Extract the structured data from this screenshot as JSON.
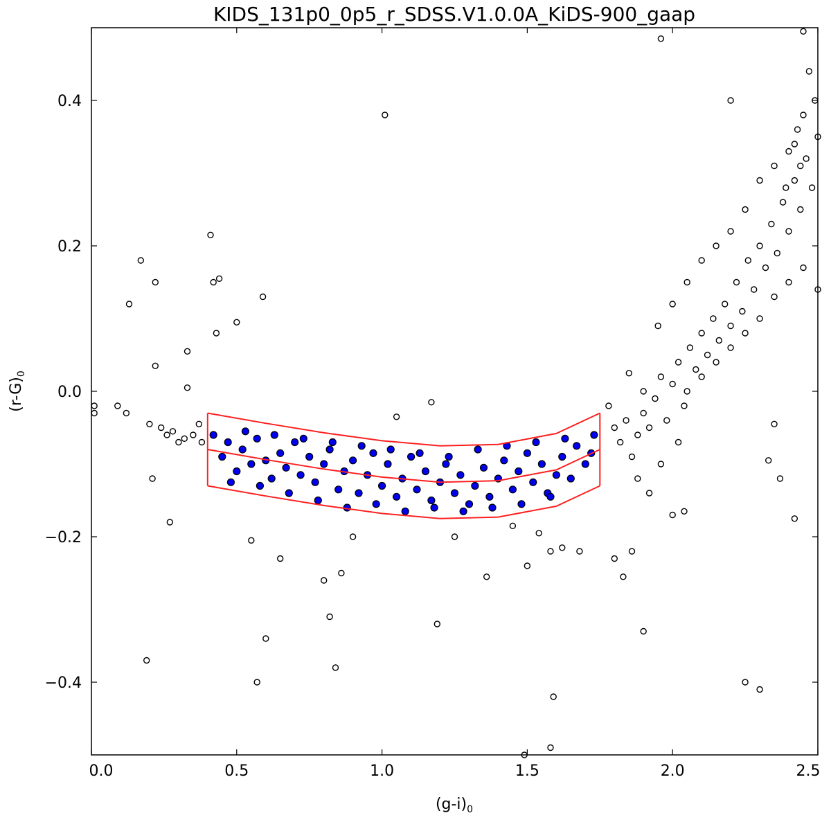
{
  "chart_data": {
    "type": "scatter",
    "title": "KIDS_131p0_0p5_r_SDSS.V1.0.0A_KiDS-900_gaap",
    "xlabel": "(g-i)",
    "xlabel_sub": "0",
    "ylabel": "(r-G)",
    "ylabel_sub": "0",
    "xlim": [
      0.0,
      2.5
    ],
    "ylim": [
      -0.5,
      0.5
    ],
    "xticks": [
      0.0,
      0.5,
      1.0,
      1.5,
      2.0,
      2.5
    ],
    "xtick_labels": [
      "0.0",
      "0.5",
      "1.0",
      "1.5",
      "2.0",
      "2.5"
    ],
    "yticks": [
      -0.4,
      -0.2,
      0.0,
      0.2,
      0.4
    ],
    "ytick_labels": [
      "−0.4",
      "−0.2",
      "0.0",
      "0.2",
      "0.4"
    ],
    "grid": false,
    "colors": {
      "selected_fill": "#0000ee",
      "outlier_fill": "#ffffff",
      "marker_edge": "#000000",
      "selection_line": "#ff2020"
    },
    "selection_box": {
      "x_min": 0.4,
      "x_max": 1.75,
      "center_curve": [
        [
          0.4,
          -0.08
        ],
        [
          0.6,
          -0.094
        ],
        [
          0.8,
          -0.107
        ],
        [
          1.0,
          -0.118
        ],
        [
          1.2,
          -0.125
        ],
        [
          1.4,
          -0.123
        ],
        [
          1.6,
          -0.108
        ],
        [
          1.75,
          -0.08
        ]
      ],
      "half_width": 0.05
    },
    "series": [
      {
        "role": "selected",
        "points": [
          [
            0.42,
            -0.06
          ],
          [
            0.45,
            -0.09
          ],
          [
            0.47,
            -0.07
          ],
          [
            0.5,
            -0.11
          ],
          [
            0.52,
            -0.08
          ],
          [
            0.55,
            -0.1
          ],
          [
            0.57,
            -0.065
          ],
          [
            0.6,
            -0.095
          ],
          [
            0.62,
            -0.12
          ],
          [
            0.65,
            -0.085
          ],
          [
            0.67,
            -0.105
          ],
          [
            0.7,
            -0.07
          ],
          [
            0.72,
            -0.115
          ],
          [
            0.75,
            -0.09
          ],
          [
            0.77,
            -0.125
          ],
          [
            0.8,
            -0.1
          ],
          [
            0.82,
            -0.08
          ],
          [
            0.85,
            -0.135
          ],
          [
            0.87,
            -0.11
          ],
          [
            0.9,
            -0.095
          ],
          [
            0.92,
            -0.14
          ],
          [
            0.95,
            -0.115
          ],
          [
            0.97,
            -0.085
          ],
          [
            1.0,
            -0.13
          ],
          [
            1.02,
            -0.1
          ],
          [
            1.05,
            -0.145
          ],
          [
            1.07,
            -0.12
          ],
          [
            1.1,
            -0.09
          ],
          [
            1.12,
            -0.135
          ],
          [
            1.15,
            -0.11
          ],
          [
            1.17,
            -0.15
          ],
          [
            1.2,
            -0.125
          ],
          [
            1.22,
            -0.1
          ],
          [
            1.25,
            -0.14
          ],
          [
            1.27,
            -0.115
          ],
          [
            1.3,
            -0.155
          ],
          [
            1.32,
            -0.13
          ],
          [
            1.35,
            -0.105
          ],
          [
            1.37,
            -0.145
          ],
          [
            1.4,
            -0.12
          ],
          [
            1.42,
            -0.095
          ],
          [
            1.45,
            -0.135
          ],
          [
            1.47,
            -0.11
          ],
          [
            1.5,
            -0.085
          ],
          [
            1.52,
            -0.125
          ],
          [
            1.55,
            -0.1
          ],
          [
            1.57,
            -0.14
          ],
          [
            1.6,
            -0.115
          ],
          [
            1.62,
            -0.09
          ],
          [
            1.65,
            -0.12
          ],
          [
            1.67,
            -0.075
          ],
          [
            1.7,
            -0.1
          ],
          [
            1.72,
            -0.085
          ],
          [
            0.48,
            -0.125
          ],
          [
            0.58,
            -0.13
          ],
          [
            0.68,
            -0.14
          ],
          [
            0.78,
            -0.15
          ],
          [
            0.88,
            -0.16
          ],
          [
            0.98,
            -0.155
          ],
          [
            1.08,
            -0.165
          ],
          [
            1.18,
            -0.16
          ],
          [
            1.28,
            -0.165
          ],
          [
            1.38,
            -0.16
          ],
          [
            1.48,
            -0.155
          ],
          [
            1.58,
            -0.145
          ],
          [
            0.53,
            -0.055
          ],
          [
            0.63,
            -0.06
          ],
          [
            0.73,
            -0.065
          ],
          [
            0.83,
            -0.07
          ],
          [
            0.93,
            -0.075
          ],
          [
            1.03,
            -0.08
          ],
          [
            1.13,
            -0.085
          ],
          [
            1.23,
            -0.09
          ],
          [
            1.33,
            -0.08
          ],
          [
            1.43,
            -0.075
          ],
          [
            1.53,
            -0.07
          ],
          [
            1.63,
            -0.065
          ],
          [
            1.73,
            -0.06
          ]
        ]
      },
      {
        "role": "outliers",
        "points": [
          [
            0.01,
            -0.02
          ],
          [
            0.01,
            -0.03
          ],
          [
            0.09,
            -0.02
          ],
          [
            0.12,
            -0.03
          ],
          [
            0.13,
            0.12
          ],
          [
            0.17,
            0.18
          ],
          [
            0.22,
            0.15
          ],
          [
            0.22,
            0.035
          ],
          [
            0.19,
            -0.37
          ],
          [
            0.2,
            -0.045
          ],
          [
            0.24,
            -0.05
          ],
          [
            0.26,
            -0.06
          ],
          [
            0.28,
            -0.055
          ],
          [
            0.3,
            -0.07
          ],
          [
            0.32,
            -0.065
          ],
          [
            0.33,
            0.055
          ],
          [
            0.33,
            0.005
          ],
          [
            0.35,
            -0.06
          ],
          [
            0.37,
            -0.045
          ],
          [
            0.38,
            -0.07
          ],
          [
            0.41,
            0.215
          ],
          [
            0.42,
            0.15
          ],
          [
            0.44,
            0.155
          ],
          [
            0.43,
            0.08
          ],
          [
            0.5,
            0.095
          ],
          [
            0.59,
            0.13
          ],
          [
            0.27,
            -0.18
          ],
          [
            0.21,
            -0.12
          ],
          [
            0.55,
            -0.205
          ],
          [
            0.57,
            -0.4
          ],
          [
            0.6,
            -0.34
          ],
          [
            0.65,
            -0.23
          ],
          [
            0.8,
            -0.26
          ],
          [
            0.82,
            -0.31
          ],
          [
            0.84,
            -0.38
          ],
          [
            0.86,
            -0.25
          ],
          [
            0.9,
            -0.2
          ],
          [
            1.01,
            0.38
          ],
          [
            1.05,
            -0.035
          ],
          [
            1.19,
            -0.32
          ],
          [
            1.17,
            -0.015
          ],
          [
            1.25,
            -0.2
          ],
          [
            1.36,
            -0.255
          ],
          [
            1.45,
            -0.185
          ],
          [
            1.5,
            -0.24
          ],
          [
            1.54,
            -0.195
          ],
          [
            1.58,
            -0.22
          ],
          [
            1.59,
            -0.42
          ],
          [
            1.62,
            -0.215
          ],
          [
            1.68,
            -0.22
          ],
          [
            1.49,
            -0.5
          ],
          [
            1.58,
            -0.49
          ],
          [
            1.8,
            -0.23
          ],
          [
            1.83,
            -0.255
          ],
          [
            1.86,
            -0.22
          ],
          [
            1.9,
            -0.33
          ],
          [
            1.96,
            0.485
          ],
          [
            2.0,
            -0.17
          ],
          [
            2.04,
            -0.165
          ],
          [
            2.25,
            -0.4
          ],
          [
            2.3,
            -0.41
          ],
          [
            2.33,
            -0.095
          ],
          [
            2.37,
            -0.12
          ],
          [
            2.42,
            -0.175
          ],
          [
            2.45,
            0.495
          ],
          [
            2.2,
            0.4
          ],
          [
            1.78,
            -0.02
          ],
          [
            1.8,
            -0.05
          ],
          [
            1.82,
            -0.07
          ],
          [
            1.84,
            -0.04
          ],
          [
            1.86,
            -0.09
          ],
          [
            1.88,
            -0.06
          ],
          [
            1.9,
            -0.03
          ],
          [
            1.92,
            -0.05
          ],
          [
            1.94,
            -0.01
          ],
          [
            1.96,
            0.02
          ],
          [
            1.98,
            -0.04
          ],
          [
            2.0,
            0.01
          ],
          [
            2.02,
            0.04
          ],
          [
            2.04,
            -0.02
          ],
          [
            2.06,
            0.06
          ],
          [
            2.08,
            0.03
          ],
          [
            2.1,
            0.08
          ],
          [
            2.12,
            0.05
          ],
          [
            2.14,
            0.1
          ],
          [
            2.16,
            0.07
          ],
          [
            2.18,
            0.12
          ],
          [
            2.2,
            0.09
          ],
          [
            2.22,
            0.15
          ],
          [
            2.24,
            0.11
          ],
          [
            2.26,
            0.18
          ],
          [
            2.28,
            0.14
          ],
          [
            2.3,
            0.2
          ],
          [
            2.32,
            0.17
          ],
          [
            2.34,
            0.23
          ],
          [
            2.36,
            0.19
          ],
          [
            2.38,
            0.26
          ],
          [
            2.4,
            0.22
          ],
          [
            2.42,
            0.29
          ],
          [
            2.44,
            0.25
          ],
          [
            2.46,
            0.32
          ],
          [
            2.48,
            0.28
          ],
          [
            2.5,
            0.35
          ],
          [
            2.49,
            0.4
          ],
          [
            2.47,
            0.44
          ],
          [
            2.45,
            0.38
          ],
          [
            1.95,
            0.09
          ],
          [
            2.0,
            0.12
          ],
          [
            2.05,
            0.15
          ],
          [
            2.1,
            0.18
          ],
          [
            2.15,
            0.2
          ],
          [
            2.2,
            0.22
          ],
          [
            2.25,
            0.25
          ],
          [
            2.3,
            0.29
          ],
          [
            2.35,
            0.31
          ],
          [
            2.4,
            0.33
          ],
          [
            2.43,
            0.36
          ],
          [
            2.05,
            0.0
          ],
          [
            2.1,
            0.02
          ],
          [
            2.15,
            0.04
          ],
          [
            2.2,
            0.06
          ],
          [
            2.25,
            0.08
          ],
          [
            2.3,
            0.1
          ],
          [
            2.35,
            0.13
          ],
          [
            2.4,
            0.15
          ],
          [
            2.45,
            0.17
          ],
          [
            2.5,
            0.14
          ],
          [
            1.85,
            0.025
          ],
          [
            1.9,
            0.0
          ],
          [
            2.35,
            -0.045
          ],
          [
            2.42,
            0.34
          ],
          [
            2.39,
            0.28
          ],
          [
            2.44,
            0.31
          ],
          [
            1.88,
            -0.12
          ],
          [
            1.92,
            -0.14
          ],
          [
            1.96,
            -0.1
          ],
          [
            2.02,
            -0.07
          ]
        ]
      }
    ]
  }
}
